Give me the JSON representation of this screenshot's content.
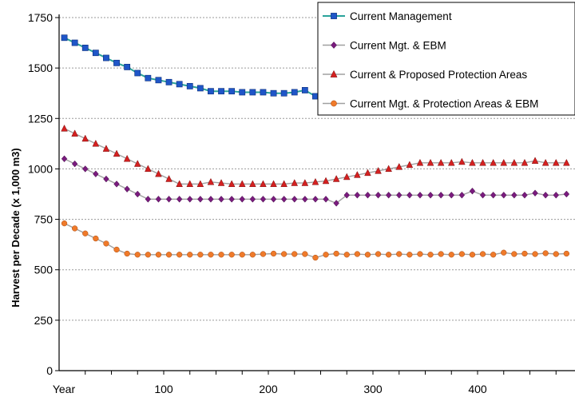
{
  "chart_data": {
    "type": "line",
    "title": "",
    "xlabel": "",
    "ylabel": "Harvest per Decade (x 1,000 m3)",
    "xlim": [
      0,
      500
    ],
    "ylim": [
      0,
      1750
    ],
    "x_tick_labels": [
      {
        "x": 0,
        "label": "Year"
      },
      {
        "x": 100,
        "label": "100"
      },
      {
        "x": 200,
        "label": "200"
      },
      {
        "x": 300,
        "label": "300"
      },
      {
        "x": 400,
        "label": "400"
      }
    ],
    "y_ticks": [
      0,
      250,
      500,
      750,
      1000,
      1250,
      1500,
      1750
    ],
    "y_tick_labels": [
      "0",
      "250",
      "500",
      "750",
      "1000",
      "1250",
      "1500",
      "1750"
    ],
    "grid": "horizontal dashed",
    "legend_position": "top-right",
    "series": [
      {
        "name": "Current Management",
        "color": "#1f56c8",
        "line_color": "#2aa39a",
        "marker": "square",
        "x": [
          5,
          15,
          25,
          35,
          45,
          55,
          65,
          75,
          85,
          95,
          105,
          115,
          125,
          135,
          145,
          155,
          165,
          175,
          185,
          195,
          205,
          215,
          225,
          235,
          245
        ],
        "y": [
          1650,
          1625,
          1600,
          1575,
          1550,
          1525,
          1505,
          1475,
          1450,
          1440,
          1430,
          1420,
          1410,
          1400,
          1385,
          1385,
          1385,
          1380,
          1380,
          1380,
          1375,
          1375,
          1380,
          1390,
          1360
        ]
      },
      {
        "name": "Current Mgt. & EBM",
        "color": "#7a1b7e",
        "line_color": "#a0a0a0",
        "marker": "diamond",
        "x": [
          5,
          15,
          25,
          35,
          45,
          55,
          65,
          75,
          85,
          95,
          105,
          115,
          125,
          135,
          145,
          155,
          165,
          175,
          185,
          195,
          205,
          215,
          225,
          235,
          245,
          255,
          265,
          275,
          285,
          295,
          305,
          315,
          325,
          335,
          345,
          355,
          365,
          375,
          385,
          395,
          405,
          415,
          425,
          435,
          445,
          455,
          465,
          475,
          485,
          495
        ],
        "y": [
          1050,
          1025,
          1000,
          975,
          950,
          925,
          900,
          875,
          850,
          850,
          850,
          850,
          850,
          850,
          850,
          850,
          850,
          850,
          850,
          850,
          850,
          850,
          850,
          850,
          850,
          850,
          830,
          870,
          870,
          870,
          870,
          870,
          870,
          870,
          870,
          870,
          870,
          870,
          870,
          890,
          870,
          870,
          870,
          870,
          870,
          880,
          870,
          870,
          875,
          870
        ]
      },
      {
        "name": "Current & Proposed Protection Areas",
        "color": "#d42020",
        "line_color": "#a0a0a0",
        "marker": "triangle",
        "x": [
          5,
          15,
          25,
          35,
          45,
          55,
          65,
          75,
          85,
          95,
          105,
          115,
          125,
          135,
          145,
          155,
          165,
          175,
          185,
          195,
          205,
          215,
          225,
          235,
          245,
          255,
          265,
          275,
          285,
          295,
          305,
          315,
          325,
          335,
          345,
          355,
          365,
          375,
          385,
          395,
          405,
          415,
          425,
          435,
          445,
          455,
          465,
          475,
          485,
          495
        ],
        "y": [
          1200,
          1175,
          1150,
          1125,
          1100,
          1075,
          1050,
          1025,
          1000,
          975,
          950,
          925,
          925,
          925,
          935,
          930,
          925,
          925,
          925,
          925,
          925,
          925,
          930,
          930,
          935,
          940,
          950,
          960,
          970,
          980,
          990,
          1000,
          1010,
          1020,
          1030,
          1030,
          1030,
          1030,
          1035,
          1030,
          1030,
          1030,
          1030,
          1030,
          1030,
          1040,
          1030,
          1030,
          1030,
          1030
        ]
      },
      {
        "name": "Current Mgt. & Protection Areas & EBM",
        "color": "#ef7a2a",
        "line_color": "#a0a0a0",
        "marker": "circle",
        "x": [
          5,
          15,
          25,
          35,
          45,
          55,
          65,
          75,
          85,
          95,
          105,
          115,
          125,
          135,
          145,
          155,
          165,
          175,
          185,
          195,
          205,
          215,
          225,
          235,
          245,
          255,
          265,
          275,
          285,
          295,
          305,
          315,
          325,
          335,
          345,
          355,
          365,
          375,
          385,
          395,
          405,
          415,
          425,
          435,
          445,
          455,
          465,
          475,
          485,
          495
        ],
        "y": [
          730,
          705,
          680,
          655,
          630,
          600,
          580,
          575,
          575,
          575,
          575,
          575,
          575,
          575,
          575,
          575,
          575,
          575,
          575,
          578,
          580,
          578,
          578,
          578,
          560,
          575,
          580,
          575,
          578,
          575,
          578,
          575,
          578,
          575,
          578,
          575,
          578,
          575,
          578,
          575,
          578,
          575,
          585,
          578,
          580,
          578,
          582,
          578,
          580,
          582
        ]
      }
    ]
  }
}
